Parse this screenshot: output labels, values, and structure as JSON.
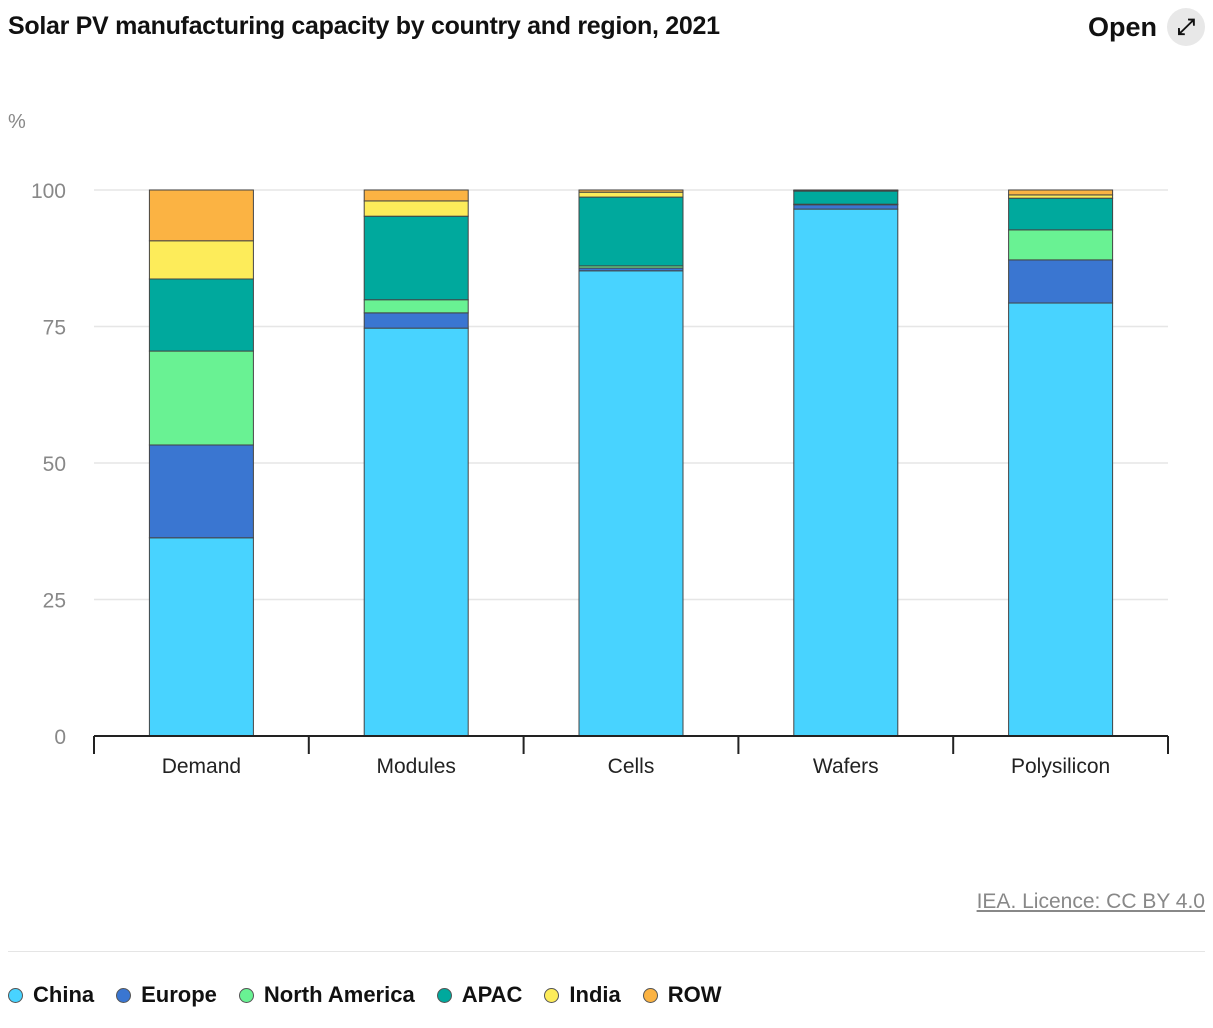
{
  "header": {
    "title": "Solar PV manufacturing capacity by country and region, 2021",
    "open_label": "Open",
    "open_icon": "expand-arrows-icon"
  },
  "credit": "IEA. Licence: CC BY 4.0",
  "chart_data": {
    "type": "bar",
    "stacked": true,
    "title": "Solar PV manufacturing capacity by country and region, 2021",
    "ylabel": "%",
    "ylim": [
      0,
      100
    ],
    "yticks": [
      0,
      25,
      50,
      75,
      100
    ],
    "grid": true,
    "legend": "bottom",
    "categories": [
      "Demand",
      "Modules",
      "Cells",
      "Wafers",
      "Polysilicon"
    ],
    "series": [
      {
        "name": "China",
        "color": "#48d3ff",
        "values": [
          36.3,
          74.7,
          85.2,
          96.5,
          79.3
        ]
      },
      {
        "name": "Europe",
        "color": "#3a76d1",
        "values": [
          17.0,
          2.8,
          0.5,
          0.8,
          7.9
        ]
      },
      {
        "name": "North America",
        "color": "#69f293",
        "values": [
          17.2,
          2.4,
          0.4,
          0.1,
          5.5
        ]
      },
      {
        "name": "APAC",
        "color": "#00a99d",
        "values": [
          13.2,
          15.3,
          12.6,
          2.4,
          5.8
        ]
      },
      {
        "name": "India",
        "color": "#fdec5a",
        "values": [
          7.0,
          2.8,
          0.9,
          0.1,
          0.6
        ]
      },
      {
        "name": "ROW",
        "color": "#fbb343",
        "values": [
          9.3,
          2.0,
          0.4,
          0.1,
          0.9
        ]
      }
    ]
  }
}
